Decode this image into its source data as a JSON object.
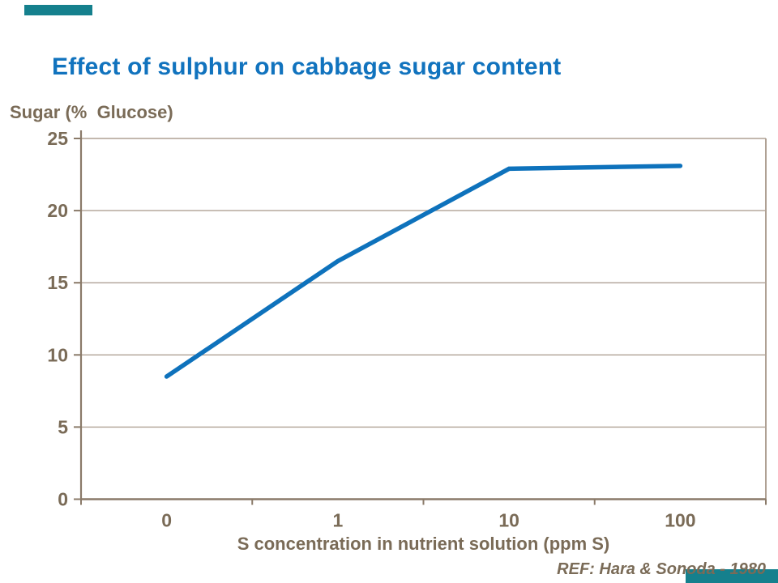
{
  "title": "Effect of sulphur on cabbage sugar content",
  "reference": "REF: Hara & Sonoda - 1980",
  "y_axis_title": "Sugar (%  Glucose)",
  "chart_data": {
    "type": "line",
    "title": "Effect of sulphur on cabbage sugar content",
    "xlabel": "S concentration in nutrient solution (ppm S)",
    "ylabel": "Sugar (% Glucose)",
    "categories": [
      "0",
      "1",
      "10",
      "100"
    ],
    "series": [
      {
        "name": "sugar-percent-glucose",
        "values": [
          8.5,
          16.5,
          22.9,
          23.1
        ]
      }
    ],
    "ylim": [
      0,
      25
    ],
    "yticks": [
      0,
      5,
      10,
      15,
      20,
      25
    ],
    "x_axis_type": "categorical",
    "grid": "horizontal-only",
    "legend": "none",
    "annotation": "REF: Hara & Sonoda - 1980"
  },
  "colors": {
    "title_blue": "#1173BE",
    "line_blue": "#0E72BC",
    "label_brown": "#7A6B57",
    "axis_brown": "#8A7A69",
    "gridline_taupe": "#AFA194",
    "decor_teal": "#15808D"
  }
}
